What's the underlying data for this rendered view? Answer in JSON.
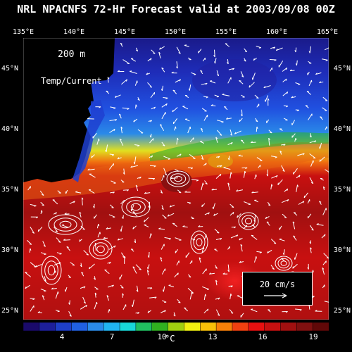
{
  "title": "NRL NPACNFS 72-Hr Forecast valid at 2003/09/08 00Z",
  "depth_label": "200 m",
  "layer_label": "Temp/Current",
  "lon_labels": [
    "135°E",
    "140°E",
    "145°E",
    "150°E",
    "155°E",
    "160°E",
    "165°E"
  ],
  "lat_labels": [
    "45°N",
    "40°N",
    "35°N",
    "30°N",
    "25°N"
  ],
  "scale": {
    "label": "20 cm/s"
  },
  "colorbar": {
    "ticks": [
      "4",
      "7",
      "10",
      "13",
      "16",
      "19"
    ],
    "unit": "°C",
    "colors": [
      "#1a0a6a",
      "#1d1f9a",
      "#1e3fc8",
      "#2060e0",
      "#2a8ae8",
      "#20b4f0",
      "#18d8d8",
      "#20c060",
      "#30b020",
      "#a0d010",
      "#f0f010",
      "#f8c008",
      "#f88008",
      "#f04010",
      "#e81010",
      "#c81010",
      "#a01010",
      "#801010",
      "#600808"
    ]
  },
  "colors": {
    "land": "#000000",
    "background": "#000000",
    "text": "#ffffff"
  }
}
